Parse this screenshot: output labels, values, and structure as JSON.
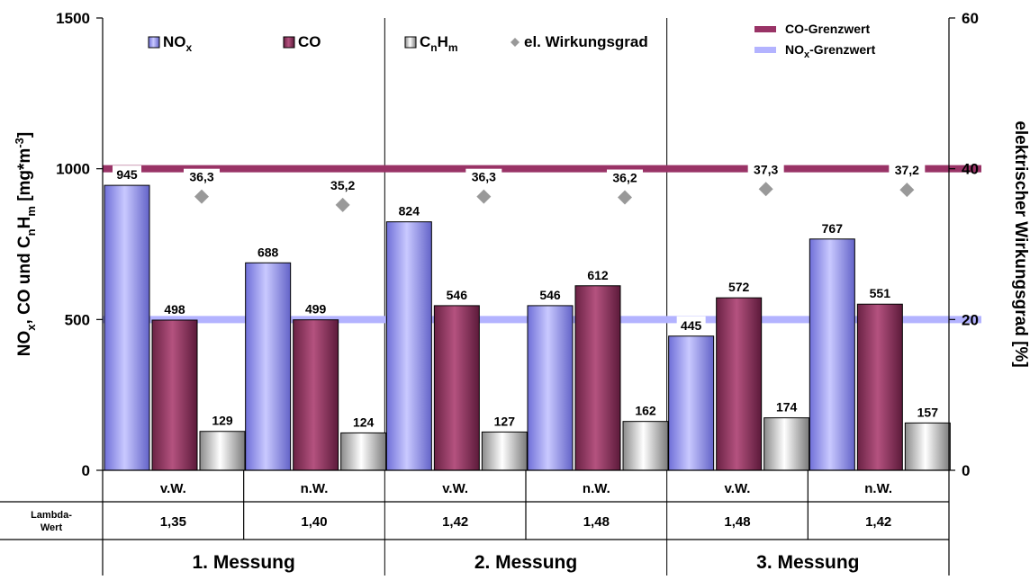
{
  "chart_data": {
    "type": "bar",
    "categories": [
      "v.W.",
      "n.W.",
      "v.W.",
      "n.W.",
      "v.W.",
      "n.W."
    ],
    "lambda_label_line1": "Lambda-",
    "lambda_label_line2": "Wert",
    "lambda_values": [
      "1,35",
      "1,40",
      "1,42",
      "1,48",
      "1,48",
      "1,42"
    ],
    "groups": [
      "1. Messung",
      "2. Messung",
      "3. Messung"
    ],
    "series": [
      {
        "name_main": "NO",
        "name_sub": "x",
        "name_tail": "",
        "values": [
          945,
          688,
          824,
          546,
          445,
          767
        ],
        "color": "#9999ff"
      },
      {
        "name_main": "CO",
        "name_sub": "",
        "name_tail": "",
        "values": [
          498,
          499,
          546,
          612,
          572,
          551
        ],
        "color": "#993366"
      },
      {
        "name_main": "C",
        "name_sub": "n",
        "name_tail": "H",
        "name_sub2": "m",
        "values": [
          129,
          124,
          127,
          162,
          174,
          157
        ],
        "color": "#ffffff"
      }
    ],
    "efficiency": {
      "name": "el. Wirkungsgrad",
      "values": [
        36.3,
        35.2,
        36.3,
        36.2,
        37.3,
        37.2
      ],
      "labels": [
        "36,3",
        "35,2",
        "36,3",
        "36,2",
        "37,3",
        "37,2"
      ],
      "color": "#999999"
    },
    "limits": [
      {
        "name_main": "CO-Grenzwert",
        "value": 1000,
        "color": "#993366"
      },
      {
        "name_main": "NO",
        "name_sub": "x",
        "name_tail": "-Grenzwert",
        "value": 500,
        "color": "#b3b3ff"
      }
    ],
    "y_left": {
      "ticks": [
        "0",
        "500",
        "1000",
        "1500"
      ],
      "ylim": [
        0,
        1500
      ]
    },
    "y_right": {
      "ticks": [
        "0",
        "20",
        "40",
        "60"
      ],
      "ylim": [
        0,
        60
      ]
    },
    "ylabel_left": {
      "p1": "NO",
      "s1": "x",
      "p2": ", CO und C",
      "s2": "n",
      "p3": "H",
      "s3": "m",
      "p4": " [mg*m",
      "sup": "-3",
      "p5": "]"
    },
    "ylabel_right": "elektrischer Wirkungsgrad [%]",
    "legend_placement": "top",
    "grid": false
  }
}
